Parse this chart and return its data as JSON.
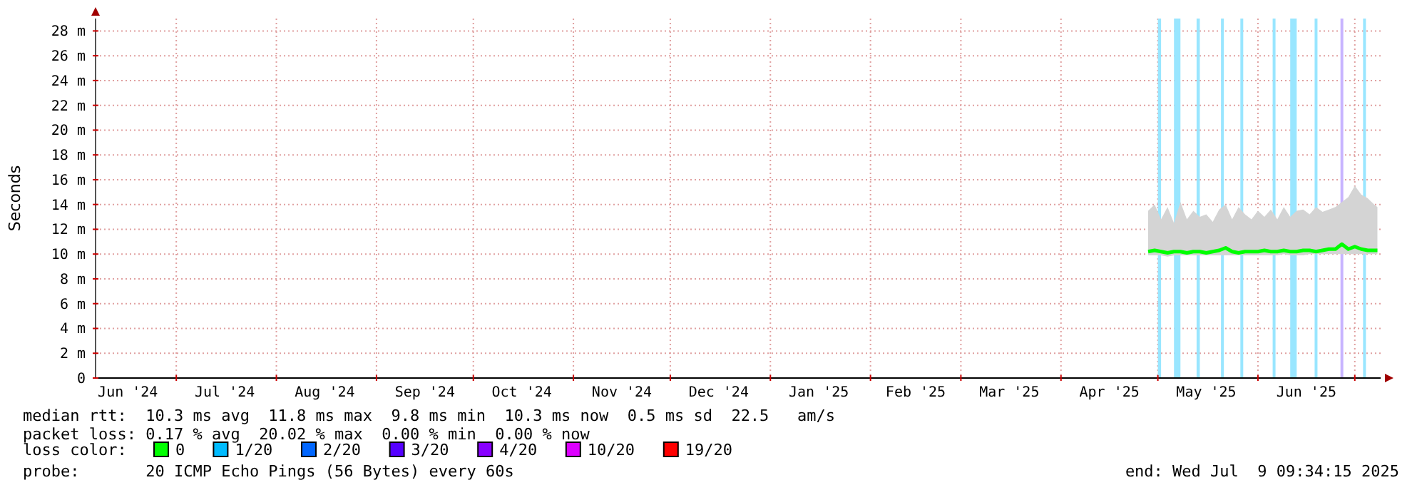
{
  "chart_data": {
    "type": "line",
    "ylabel": "Seconds",
    "xlim": [
      "2024-06-06",
      "2025-07-09"
    ],
    "xticks": [
      {
        "value": "2024-06-16",
        "label": "Jun '24"
      },
      {
        "value": "2024-07-01",
        "label": null
      },
      {
        "value": "2024-07-16",
        "label": "Jul '24"
      },
      {
        "value": "2024-08-01",
        "label": null
      },
      {
        "value": "2024-08-16",
        "label": "Aug '24"
      },
      {
        "value": "2024-09-01",
        "label": null
      },
      {
        "value": "2024-09-16",
        "label": "Sep '24"
      },
      {
        "value": "2024-10-01",
        "label": null
      },
      {
        "value": "2024-10-16",
        "label": "Oct '24"
      },
      {
        "value": "2024-11-01",
        "label": null
      },
      {
        "value": "2024-11-16",
        "label": "Nov '24"
      },
      {
        "value": "2024-12-01",
        "label": null
      },
      {
        "value": "2024-12-16",
        "label": "Dec '24"
      },
      {
        "value": "2025-01-01",
        "label": null
      },
      {
        "value": "2025-01-16",
        "label": "Jan '25"
      },
      {
        "value": "2025-02-01",
        "label": null
      },
      {
        "value": "2025-02-15",
        "label": "Feb '25"
      },
      {
        "value": "2025-03-01",
        "label": null
      },
      {
        "value": "2025-03-16",
        "label": "Mar '25"
      },
      {
        "value": "2025-04-01",
        "label": null
      },
      {
        "value": "2025-04-16",
        "label": "Apr '25"
      },
      {
        "value": "2025-05-01",
        "label": null
      },
      {
        "value": "2025-05-16",
        "label": "May '25"
      },
      {
        "value": "2025-06-01",
        "label": null
      },
      {
        "value": "2025-06-16",
        "label": "Jun '25"
      },
      {
        "value": "2025-07-01",
        "label": null
      }
    ],
    "ylim": [
      0,
      29
    ],
    "yticks": [
      {
        "value": 0,
        "label": "0"
      },
      {
        "value": 2,
        "label": "2 m"
      },
      {
        "value": 4,
        "label": "4 m"
      },
      {
        "value": 6,
        "label": "6 m"
      },
      {
        "value": 8,
        "label": "8 m"
      },
      {
        "value": 10,
        "label": "10 m"
      },
      {
        "value": 12,
        "label": "12 m"
      },
      {
        "value": 14,
        "label": "14 m"
      },
      {
        "value": 16,
        "label": "16 m"
      },
      {
        "value": 18,
        "label": "18 m"
      },
      {
        "value": 20,
        "label": "20 m"
      },
      {
        "value": 22,
        "label": "22 m"
      },
      {
        "value": 24,
        "label": "24 m"
      },
      {
        "value": 26,
        "label": "26 m"
      },
      {
        "value": 28,
        "label": "28 m"
      }
    ],
    "grid": true,
    "legend": "bottom",
    "legend_title": "loss color:",
    "line_style": "solid",
    "marker": "none",
    "x": [
      "2025-04-28",
      "2025-04-30",
      "2025-05-02",
      "2025-05-04",
      "2025-05-06",
      "2025-05-08",
      "2025-05-10",
      "2025-05-12",
      "2025-05-14",
      "2025-05-16",
      "2025-05-18",
      "2025-05-20",
      "2025-05-22",
      "2025-05-24",
      "2025-05-26",
      "2025-05-28",
      "2025-05-30",
      "2025-06-01",
      "2025-06-03",
      "2025-06-05",
      "2025-06-07",
      "2025-06-09",
      "2025-06-11",
      "2025-06-13",
      "2025-06-15",
      "2025-06-17",
      "2025-06-19",
      "2025-06-21",
      "2025-06-23",
      "2025-06-25",
      "2025-06-27",
      "2025-06-29",
      "2025-07-01",
      "2025-07-03",
      "2025-07-05",
      "2025-07-07",
      "2025-07-08"
    ],
    "series": [
      {
        "name": "0",
        "color": "#00ff00",
        "values": [
          10.2,
          10.3,
          10.2,
          10.1,
          10.2,
          10.2,
          10.1,
          10.2,
          10.2,
          10.1,
          10.2,
          10.3,
          10.5,
          10.2,
          10.1,
          10.2,
          10.2,
          10.2,
          10.3,
          10.2,
          10.2,
          10.3,
          10.2,
          10.2,
          10.3,
          10.3,
          10.2,
          10.3,
          10.4,
          10.4,
          10.8,
          10.4,
          10.6,
          10.4,
          10.3,
          10.3,
          10.3
        ],
        "lower": [
          9.9,
          9.9,
          9.9,
          9.8,
          9.9,
          9.9,
          9.9,
          9.9,
          9.9,
          9.9,
          9.9,
          9.9,
          9.9,
          9.9,
          9.9,
          9.9,
          9.9,
          9.9,
          9.9,
          9.9,
          9.9,
          10,
          9.9,
          9.9,
          9.9,
          10,
          10,
          10,
          10,
          10,
          10,
          10,
          10,
          10,
          10,
          10,
          10
        ],
        "upper": [
          13.5,
          14,
          12.8,
          13.8,
          12.5,
          14.2,
          12.8,
          13.5,
          13,
          13.2,
          12.6,
          13.6,
          14,
          12.8,
          13.8,
          13.2,
          12.8,
          13.5,
          13,
          13.6,
          12.8,
          13.8,
          13,
          13.5,
          13.6,
          13.2,
          13.8,
          13.4,
          13.6,
          13.8,
          14.2,
          14.6,
          15.5,
          14.8,
          14.5,
          14,
          13.8
        ]
      },
      {
        "name": "1/20",
        "color": "#00bbff",
        "values": [
          null,
          null,
          null,
          null,
          null,
          null,
          null,
          null,
          null,
          null,
          null,
          null,
          null,
          null,
          null,
          null,
          null,
          null,
          null,
          null,
          null,
          null,
          null,
          null,
          null,
          null,
          null,
          null,
          null,
          null,
          null,
          null,
          null,
          null,
          null,
          null,
          null
        ]
      },
      {
        "name": "2/20",
        "color": "#0066ff",
        "values": [
          null,
          null,
          null,
          null,
          null,
          null,
          null,
          null,
          null,
          null,
          null,
          null,
          null,
          null,
          null,
          null,
          null,
          null,
          null,
          null,
          null,
          null,
          null,
          null,
          null,
          null,
          null,
          null,
          null,
          null,
          null,
          null,
          null,
          null,
          null,
          null,
          null
        ]
      },
      {
        "name": "3/20",
        "color": "#5500ff",
        "values": [
          null,
          null,
          null,
          null,
          null,
          null,
          null,
          null,
          null,
          null,
          null,
          null,
          null,
          null,
          null,
          null,
          null,
          null,
          null,
          null,
          null,
          null,
          null,
          null,
          null,
          null,
          null,
          null,
          null,
          null,
          null,
          null,
          null,
          null,
          null,
          null,
          null
        ]
      },
      {
        "name": "4/20",
        "color": "#8800ff",
        "values": [
          null,
          null,
          null,
          null,
          null,
          null,
          null,
          null,
          null,
          null,
          null,
          null,
          null,
          null,
          null,
          null,
          null,
          null,
          null,
          null,
          null,
          null,
          null,
          null,
          null,
          null,
          null,
          null,
          null,
          null,
          null,
          null,
          null,
          null,
          null,
          null,
          null
        ]
      },
      {
        "name": "10/20",
        "color": "#dd00ff",
        "values": [
          null,
          null,
          null,
          null,
          null,
          null,
          null,
          null,
          null,
          null,
          null,
          null,
          null,
          null,
          null,
          null,
          null,
          null,
          null,
          null,
          null,
          null,
          null,
          null,
          null,
          null,
          null,
          null,
          null,
          null,
          null,
          null,
          null,
          null,
          null,
          null,
          null
        ]
      },
      {
        "name": "19/20",
        "color": "#ff0000",
        "values": [
          null,
          null,
          null,
          null,
          null,
          null,
          null,
          null,
          null,
          null,
          null,
          null,
          null,
          null,
          null,
          null,
          null,
          null,
          null,
          null,
          null,
          null,
          null,
          null,
          null,
          null,
          null,
          null,
          null,
          null,
          null,
          null,
          null,
          null,
          null,
          null,
          null
        ]
      }
    ],
    "bands": [
      {
        "axis": "x",
        "from": "2025-05-01",
        "to": "2025-05-02",
        "color": "#99e6ff"
      },
      {
        "axis": "x",
        "from": "2025-05-06",
        "to": "2025-05-08",
        "color": "#99e6ff"
      },
      {
        "axis": "x",
        "from": "2025-05-13",
        "to": "2025-05-14",
        "color": "#99e6ff"
      },
      {
        "axis": "x",
        "from": "2025-06-11",
        "to": "2025-06-13",
        "color": "#99e6ff"
      }
    ],
    "ref_lines": [
      {
        "axis": "x",
        "value": "2025-05-21",
        "color": "#99e6ff"
      },
      {
        "axis": "x",
        "value": "2025-05-27",
        "color": "#99e6ff"
      },
      {
        "axis": "x",
        "value": "2025-06-06",
        "color": "#99e6ff"
      },
      {
        "axis": "x",
        "value": "2025-06-19",
        "color": "#99e6ff"
      },
      {
        "axis": "x",
        "value": "2025-06-27",
        "color": "#c8b4ff"
      },
      {
        "axis": "x",
        "value": "2025-07-04",
        "color": "#99e6ff"
      }
    ],
    "annotations": [
      "median rtt:  10.3 ms avg  11.8 ms max  9.8 ms min  10.3 ms now  0.5 ms sd  22.5   am/s",
      "packet loss: 0.17 % avg  20.02 % max  0.00 % min  0.00 % now",
      "probe:       20 ICMP Echo Pings (56 Bytes) every 60s",
      "end: Wed Jul  9 09:34:15 2025"
    ]
  }
}
